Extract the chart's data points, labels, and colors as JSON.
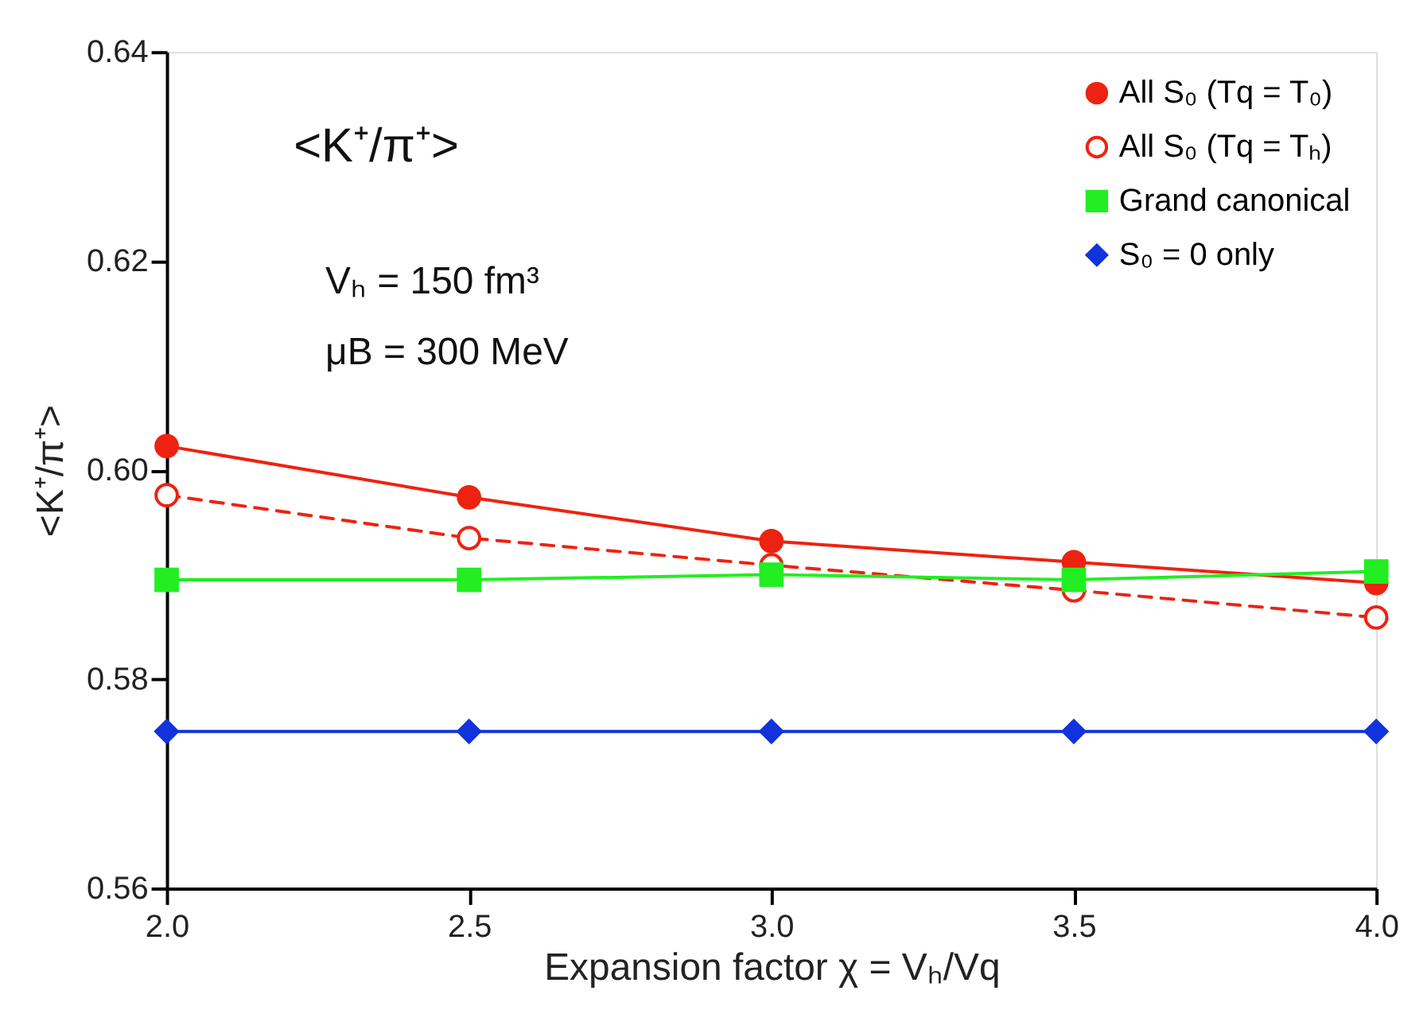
{
  "chart_data": {
    "type": "line",
    "xlabel": "Expansion factor  χ = Vₕ/Vq",
    "ylabel": "<K⁺/π⁺>",
    "annotations": [
      "<K⁺/π⁺>",
      "Vₕ = 150 fm³",
      "μB = 300 MeV"
    ],
    "x": [
      2.0,
      2.5,
      3.0,
      3.5,
      4.0
    ],
    "series": [
      {
        "name": "All S₀ (Tq = T₀)",
        "color": "#ee2211",
        "marker": "circle",
        "line_style": "solid",
        "values": [
          0.6023,
          0.5974,
          0.5932,
          0.5912,
          0.5892
        ]
      },
      {
        "name": "All S₀ (Tq = Tₕ)",
        "color": "#ee2211",
        "marker": "circle",
        "line_style": "dashed",
        "values": [
          0.5976,
          0.5935,
          0.5909,
          0.5885,
          0.5859
        ]
      },
      {
        "name": "Grand canonical",
        "color": "#22ee22",
        "marker": "square",
        "line_style": "solid",
        "values": [
          0.5895,
          0.5895,
          0.59,
          0.5895,
          0.5903
        ]
      },
      {
        "name": "S₀ = 0  only",
        "color": "#1133dd",
        "marker": "diamond",
        "line_style": "solid",
        "values": [
          0.575,
          0.575,
          0.575,
          0.575,
          0.575
        ]
      }
    ],
    "xlim": [
      2.0,
      4.0
    ],
    "xticks": [
      {
        "value": 2.0,
        "label": "2.0"
      },
      {
        "value": 2.5,
        "label": "2.5"
      },
      {
        "value": 3.0,
        "label": "3.0"
      },
      {
        "value": 3.5,
        "label": "3.5"
      },
      {
        "value": 4.0,
        "label": "4.0"
      }
    ],
    "ylim": [
      0.56,
      0.64
    ],
    "yticks": [
      0.56,
      0.58,
      {
        "value": 0.6,
        "label": "0.60"
      },
      0.62,
      0.64
    ],
    "legend": "top right",
    "grid": false
  }
}
